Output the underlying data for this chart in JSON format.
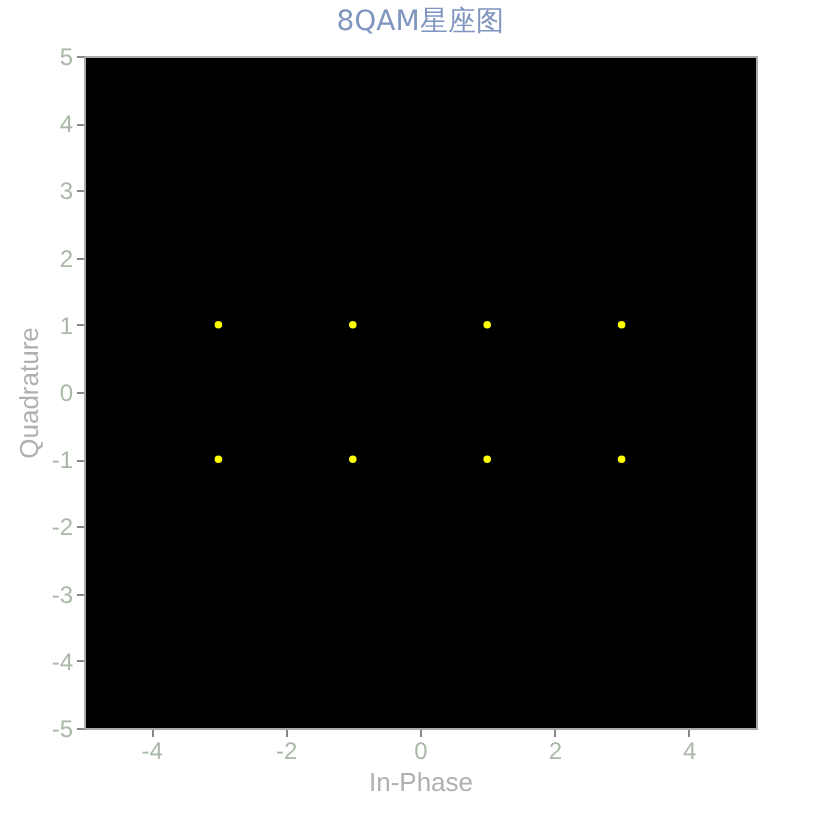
{
  "chart_data": {
    "type": "scatter",
    "title": "8QAM星座图",
    "xlabel": "In-Phase",
    "ylabel": "Quadrature",
    "x": [
      -3,
      -1,
      1,
      3,
      -3,
      -1,
      1,
      3
    ],
    "series": [
      {
        "color": "#ffff00",
        "values": [
          1,
          1,
          1,
          1,
          -1,
          -1,
          -1,
          -1
        ]
      }
    ],
    "xlim": [
      -5,
      5
    ],
    "ylim": [
      -5,
      5
    ],
    "xticks": [
      -4,
      -2,
      0,
      2,
      4
    ],
    "yticks": [
      -5,
      -4,
      -3,
      -2,
      -1,
      0,
      1,
      2,
      3,
      4,
      5
    ],
    "marker": "circle",
    "grid": false
  }
}
